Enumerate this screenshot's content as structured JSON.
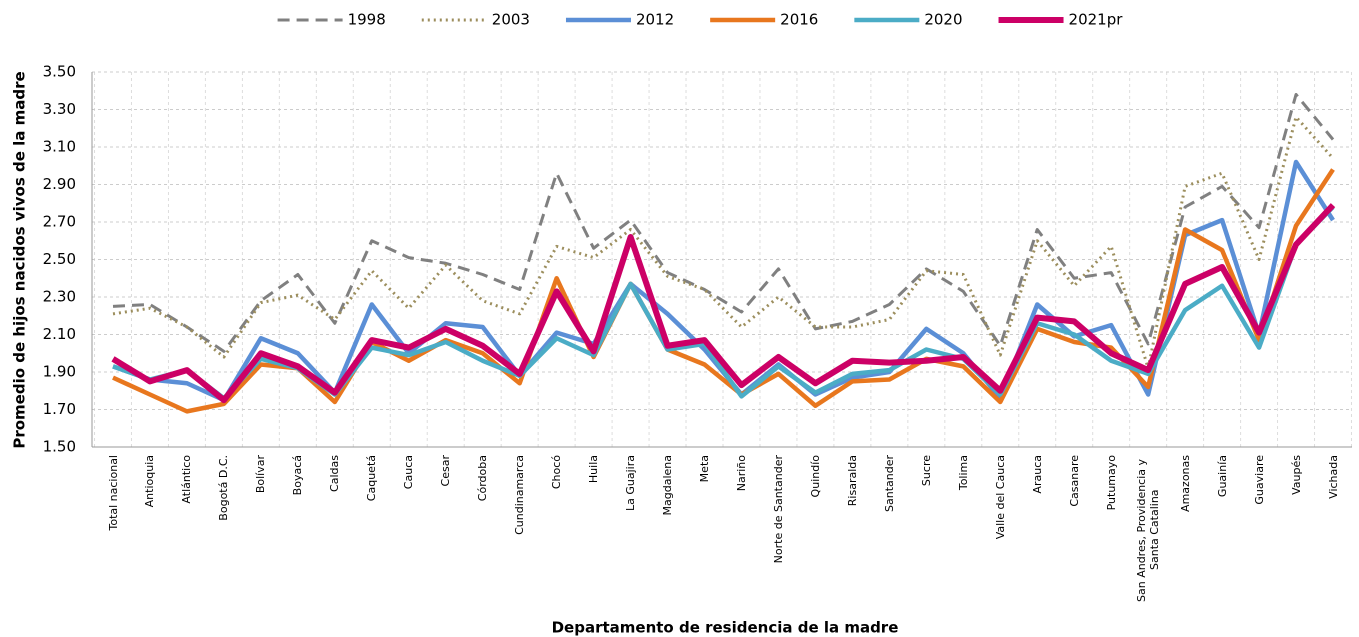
{
  "chart_data": {
    "type": "line",
    "x_label": "Departamento de residencia de la madre",
    "y_label": "Promedio de hijos nacidos vivos de la madre",
    "categories": [
      "Total nacional",
      "Antioquia",
      "Atlántico",
      "Bogotá D.C.",
      "Bolívar",
      "Boyacá",
      "Caldas",
      "Caquetá",
      "Cauca",
      "Cesar",
      "Córdoba",
      "Cundinamarca",
      "Chocó",
      "Huila",
      "La Guajira",
      "Magdalena",
      "Meta",
      "Nariño",
      "Norte de Santander",
      "Quindío",
      "Risaralda",
      "Santander",
      "Sucre",
      "Tolima",
      "Valle del Cauca",
      "Arauca",
      "Casanare",
      "Putumayo",
      "San Andres, Providencia y Santa Catalina",
      "Amazonas",
      "Guainía",
      "Guaviare",
      "Vaupés",
      "Vichada"
    ],
    "series": [
      {
        "name": "1998",
        "color": "#808080",
        "dash": "dashed",
        "values": [
          2.25,
          2.26,
          2.14,
          2.01,
          2.28,
          2.42,
          2.16,
          2.6,
          2.51,
          2.48,
          2.42,
          2.34,
          2.96,
          2.56,
          2.71,
          2.43,
          2.34,
          2.22,
          2.45,
          2.13,
          2.17,
          2.26,
          2.45,
          2.33,
          2.04,
          2.66,
          2.4,
          2.43,
          2.05,
          2.78,
          2.89,
          2.67,
          3.38,
          3.14
        ]
      },
      {
        "name": "2003",
        "color": "#9c8e5d",
        "dash": "dotted",
        "values": [
          2.21,
          2.24,
          2.14,
          1.98,
          2.27,
          2.31,
          2.18,
          2.44,
          2.24,
          2.47,
          2.28,
          2.21,
          2.57,
          2.51,
          2.66,
          2.41,
          2.34,
          2.14,
          2.3,
          2.14,
          2.14,
          2.18,
          2.44,
          2.42,
          1.99,
          2.6,
          2.36,
          2.57,
          1.92,
          2.89,
          2.96,
          2.5,
          3.26,
          3.04
        ]
      },
      {
        "name": "2012",
        "color": "#5b8fd6",
        "dash": "solid",
        "values": [
          1.93,
          1.86,
          1.84,
          1.75,
          2.08,
          2.0,
          1.79,
          2.26,
          2.0,
          2.16,
          2.14,
          1.88,
          2.11,
          2.05,
          2.37,
          2.21,
          2.02,
          1.78,
          1.94,
          1.78,
          1.87,
          1.9,
          2.13,
          2.0,
          1.76,
          2.26,
          2.09,
          2.15,
          1.78,
          2.63,
          2.71,
          2.1,
          3.02,
          2.71
        ]
      },
      {
        "name": "2016",
        "color": "#e8771e",
        "dash": "solid",
        "values": [
          1.87,
          1.78,
          1.69,
          1.73,
          1.94,
          1.92,
          1.74,
          2.06,
          1.96,
          2.07,
          2.0,
          1.84,
          2.4,
          1.98,
          2.37,
          2.02,
          1.94,
          1.78,
          1.89,
          1.72,
          1.85,
          1.86,
          1.97,
          1.93,
          1.74,
          2.13,
          2.06,
          2.03,
          1.82,
          2.66,
          2.55,
          2.07,
          2.68,
          2.98
        ]
      },
      {
        "name": "2020",
        "color": "#4bacc6",
        "dash": "solid",
        "values": [
          1.93,
          1.86,
          1.91,
          1.76,
          1.97,
          1.92,
          1.78,
          2.03,
          1.99,
          2.06,
          1.96,
          1.88,
          2.08,
          1.99,
          2.37,
          2.02,
          2.05,
          1.77,
          1.93,
          1.79,
          1.89,
          1.91,
          2.02,
          1.97,
          1.78,
          2.16,
          2.1,
          1.96,
          1.89,
          2.23,
          2.36,
          2.03,
          2.58,
          2.78
        ]
      },
      {
        "name": "2021pr",
        "color": "#cc0066",
        "dash": "solid",
        "values": [
          1.97,
          1.85,
          1.91,
          1.75,
          2.0,
          1.93,
          1.79,
          2.07,
          2.03,
          2.13,
          2.04,
          1.89,
          2.33,
          2.01,
          2.62,
          2.04,
          2.07,
          1.83,
          1.98,
          1.84,
          1.96,
          1.95,
          1.96,
          1.98,
          1.8,
          2.19,
          2.17,
          2.0,
          1.91,
          2.37,
          2.46,
          2.11,
          2.58,
          2.79
        ]
      }
    ],
    "ylim": [
      1.5,
      3.5
    ],
    "yticks": [
      {
        "value": 1.5,
        "label": "1.50"
      },
      {
        "value": 1.7,
        "label": "1.70"
      },
      {
        "value": 1.9,
        "label": "1.90"
      },
      {
        "value": 2.1,
        "label": "2.10"
      },
      {
        "value": 2.3,
        "label": "2.30"
      },
      {
        "value": 2.5,
        "label": "2.50"
      },
      {
        "value": 2.7,
        "label": "2.70"
      },
      {
        "value": 2.9,
        "label": "2.90"
      },
      {
        "value": 3.1,
        "label": "3.10"
      },
      {
        "value": 3.3,
        "label": "3.30"
      },
      {
        "value": 3.5,
        "label": "3.50"
      }
    ],
    "grid": true,
    "legend": "top"
  }
}
